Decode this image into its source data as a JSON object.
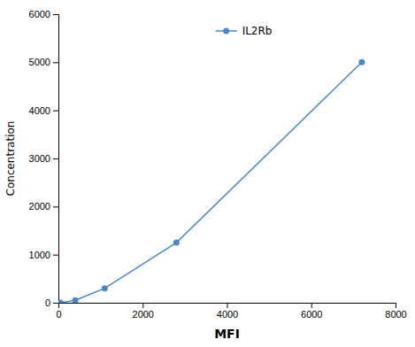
{
  "chart_data": {
    "type": "line",
    "x": [
      50,
      400,
      1100,
      2800,
      7200
    ],
    "xlabel": "MFI",
    "ylabel": "Concentration",
    "series": [
      {
        "name": "IL2Rb",
        "color": "#4e86c8",
        "marker": "circle",
        "values": [
          0,
          50,
          300,
          1250,
          5000
        ]
      }
    ],
    "xlim": [
      0,
      8000
    ],
    "ylim": [
      0,
      6000
    ],
    "xticks": [
      0,
      2000,
      4000,
      6000,
      8000
    ],
    "yticks": [
      0,
      1000,
      2000,
      3000,
      4000,
      5000,
      6000
    ],
    "grid": false,
    "legend": "top"
  }
}
